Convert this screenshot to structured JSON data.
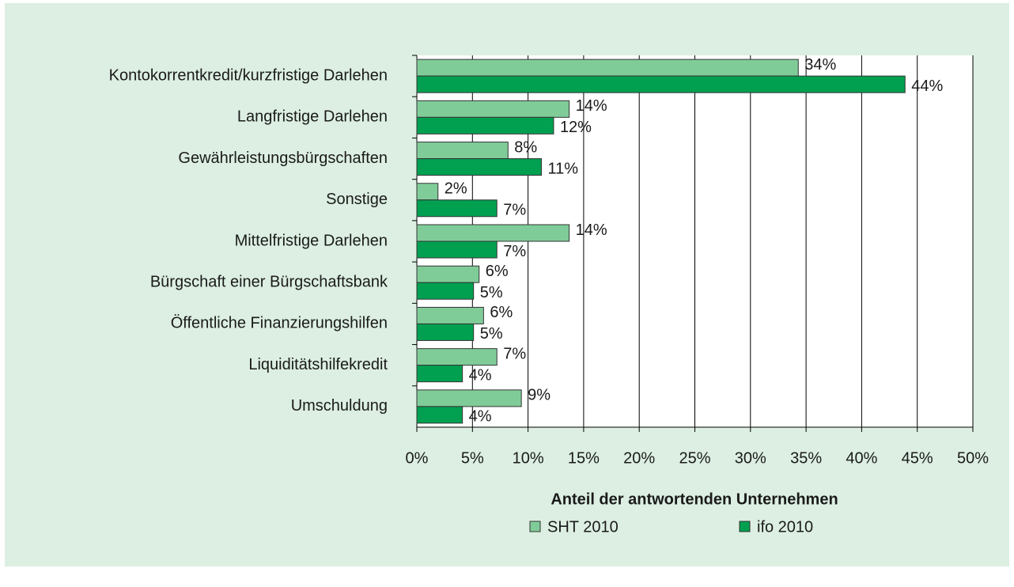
{
  "chart_data": {
    "type": "hbar",
    "xlabel": "Anteil der antwortenden Unternehmen",
    "categories": [
      "Kontokorrentkredit/kurzfristige Darlehen",
      "Langfristige Darlehen",
      "Gewährleistungsbürgschaften",
      "Sonstige",
      "Mittelfristige Darlehen",
      "Bürgschaft einer Bürgschaftsbank",
      "Öffentliche Finanzierungshilfen",
      "Liquiditätshilfekredit",
      "Umschuldung"
    ],
    "series": [
      {
        "name": "SHT 2010",
        "color": "#80cc99",
        "values": [
          34.3,
          13.7,
          8.2,
          1.9,
          13.7,
          5.6,
          6.0,
          7.2,
          9.4
        ],
        "value_labels": [
          "34%",
          "14%",
          "8%",
          "2%",
          "14%",
          "6%",
          "6%",
          "7%",
          "9%"
        ]
      },
      {
        "name": "ifo 2010",
        "color": "#00a050",
        "values": [
          43.9,
          12.3,
          11.2,
          7.2,
          7.2,
          5.1,
          5.1,
          4.1,
          4.1
        ],
        "value_labels": [
          "44%",
          "12%",
          "11%",
          "7%",
          "7%",
          "5%",
          "5%",
          "4%",
          "4%"
        ]
      }
    ],
    "xlim": [
      0,
      50
    ],
    "xticks": [
      {
        "value": 0,
        "label": "0%"
      },
      {
        "value": 5,
        "label": "5%"
      },
      {
        "value": 10,
        "label": "10%"
      },
      {
        "value": 15,
        "label": "15%"
      },
      {
        "value": 20,
        "label": "20%"
      },
      {
        "value": 25,
        "label": "25%"
      },
      {
        "value": 30,
        "label": "30%"
      },
      {
        "value": 35,
        "label": "35%"
      },
      {
        "value": 40,
        "label": "40%"
      },
      {
        "value": 45,
        "label": "45%"
      },
      {
        "value": 50,
        "label": "50%"
      }
    ],
    "grid": true
  }
}
